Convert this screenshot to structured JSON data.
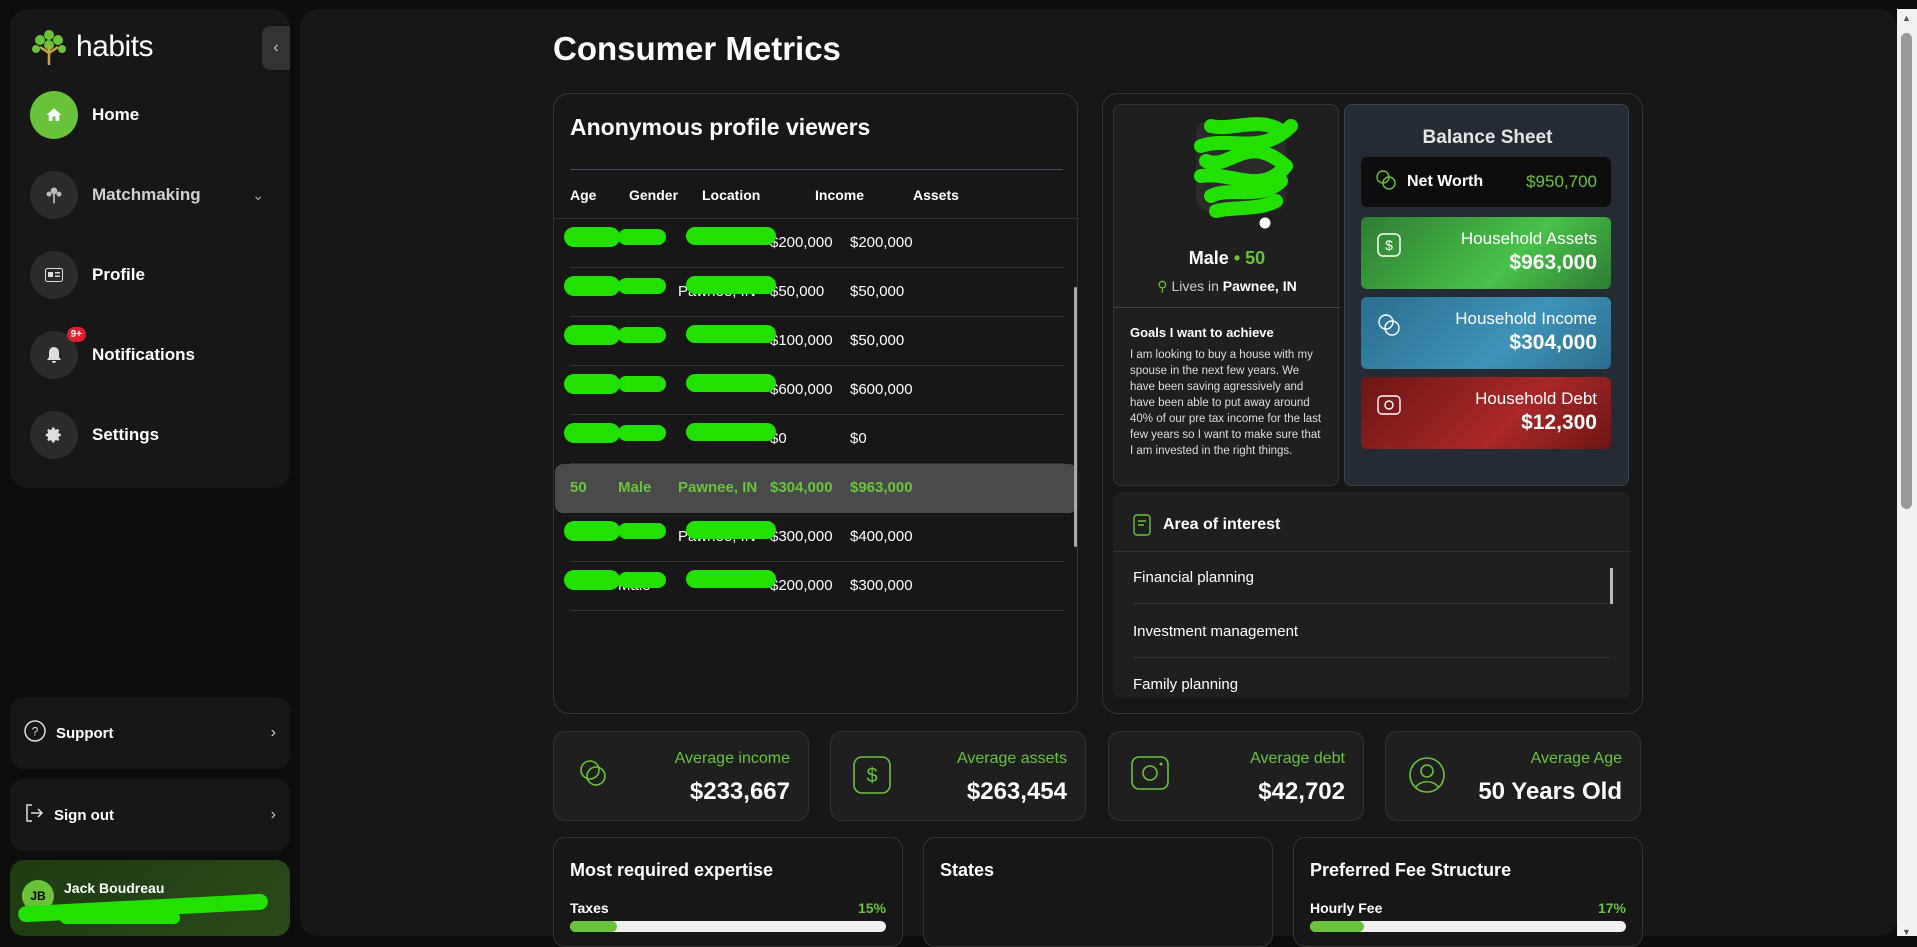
{
  "app": {
    "name": "habits"
  },
  "sidebar": {
    "items": [
      {
        "label": "Home",
        "icon": "home-icon"
      },
      {
        "label": "Matchmaking",
        "icon": "tree-icon"
      },
      {
        "label": "Profile",
        "icon": "id-card-icon"
      },
      {
        "label": "Notifications",
        "icon": "bell-icon",
        "badge": "9+"
      },
      {
        "label": "Settings",
        "icon": "gear-icon"
      }
    ],
    "support": "Support",
    "signout": "Sign out",
    "user": {
      "initials": "JB",
      "name": "Jack Boudreau"
    }
  },
  "page": {
    "title": "Consumer Metrics"
  },
  "viewers": {
    "title": "Anonymous profile viewers",
    "columns": [
      "Age",
      "Gender",
      "Location",
      "Income",
      "Assets"
    ],
    "rows": [
      {
        "age": "",
        "gender": "",
        "location": "",
        "income": "$200,000",
        "assets": "$200,000"
      },
      {
        "age": "",
        "gender": "",
        "location": "Pawnee, IN",
        "income": "$50,000",
        "assets": "$50,000"
      },
      {
        "age": "",
        "gender": "",
        "location": "",
        "income": "$100,000",
        "assets": "$50,000"
      },
      {
        "age": "",
        "gender": "",
        "location": "",
        "income": "$600,000",
        "assets": "$600,000"
      },
      {
        "age": "",
        "gender": "",
        "location": "",
        "income": "$0",
        "assets": "$0"
      },
      {
        "age": "50",
        "gender": "Male",
        "location": "Pawnee, IN",
        "income": "$304,000",
        "assets": "$963,000"
      },
      {
        "age": "",
        "gender": "",
        "location": "Pawnee, IN",
        "income": "$300,000",
        "assets": "$400,000"
      },
      {
        "age": "",
        "gender": "Male",
        "location": "",
        "income": "$200,000",
        "assets": "$300,000"
      }
    ]
  },
  "profile": {
    "sex": "Male",
    "dot": "•",
    "age": "50",
    "lives_in": "Lives in",
    "location": "Pawnee, IN",
    "goals_title": "Goals I want to achieve",
    "goals_text": "I am looking to buy a house with my spouse in the next few years. We have been saving agressively and have been able to put away around 40% of our pre tax income for the last few years so I want to make sure that I am invested in the right things."
  },
  "balance": {
    "title": "Balance Sheet",
    "net_worth_label": "Net Worth",
    "net_worth": "$950,700",
    "assets_label": "Household Assets",
    "assets": "$963,000",
    "income_label": "Household Income",
    "income": "$304,000",
    "debt_label": "Household Debt",
    "debt": "$12,300"
  },
  "interest": {
    "title": "Area of interest",
    "items": [
      "Financial planning",
      "Investment management",
      "Family planning"
    ]
  },
  "stats": [
    {
      "label": "Average income",
      "value": "$233,667",
      "icon": "coins-icon"
    },
    {
      "label": "Average assets",
      "value": "$263,454",
      "icon": "dollar-icon"
    },
    {
      "label": "Average debt",
      "value": "$42,702",
      "icon": "camera-icon"
    },
    {
      "label": "Average Age",
      "value": "50 Years Old",
      "icon": "user-icon"
    }
  ],
  "expertise": {
    "title": "Most required expertise",
    "bar_label": "Taxes",
    "percent_text": "15%",
    "fraction": 0.15
  },
  "states": {
    "title": "States"
  },
  "fee": {
    "title": "Preferred Fee Structure",
    "bar_label": "Hourly Fee",
    "percent_text": "17%",
    "fraction": 0.17
  },
  "colors": {
    "accent": "#6ac23a",
    "redaction": "#22e000",
    "badge": "#e11d2e"
  }
}
